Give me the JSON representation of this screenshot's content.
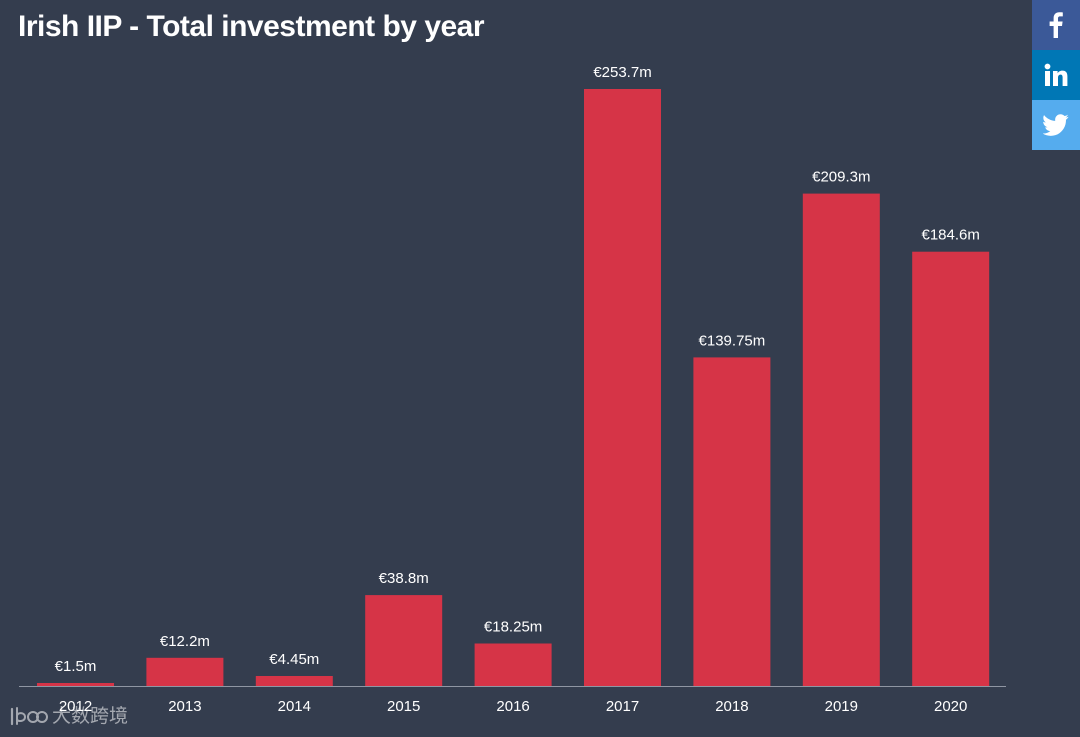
{
  "colors": {
    "background": "#343d4e",
    "bar": "#d63447",
    "axis": "#8f96a3",
    "text": "#ffffff",
    "facebook": "#3b5998",
    "linkedin": "#0077b5",
    "twitter": "#55acee"
  },
  "share": {
    "icons": [
      "facebook-icon",
      "linkedin-icon",
      "twitter-icon"
    ]
  },
  "watermark": {
    "text": "大数跨境",
    "logo": "1bo logo"
  },
  "chart_data": {
    "type": "bar",
    "title": "Irish IIP - Total investment by year",
    "xlabel": "",
    "ylabel": "",
    "categories": [
      "2012",
      "2013",
      "2014",
      "2015",
      "2016",
      "2017",
      "2018",
      "2019",
      "2020"
    ],
    "values": [
      1.5,
      12.2,
      4.45,
      38.8,
      18.25,
      253.7,
      139.75,
      209.3,
      184.6
    ],
    "data_labels": [
      "€1.5m",
      "€12.2m",
      "€4.45m",
      "€38.8m",
      "€18.25m",
      "€253.7m",
      "€139.75m",
      "€209.3m",
      "€184.6m"
    ],
    "ylim": [
      0,
      253.7
    ],
    "grid": false,
    "legend": "none"
  }
}
